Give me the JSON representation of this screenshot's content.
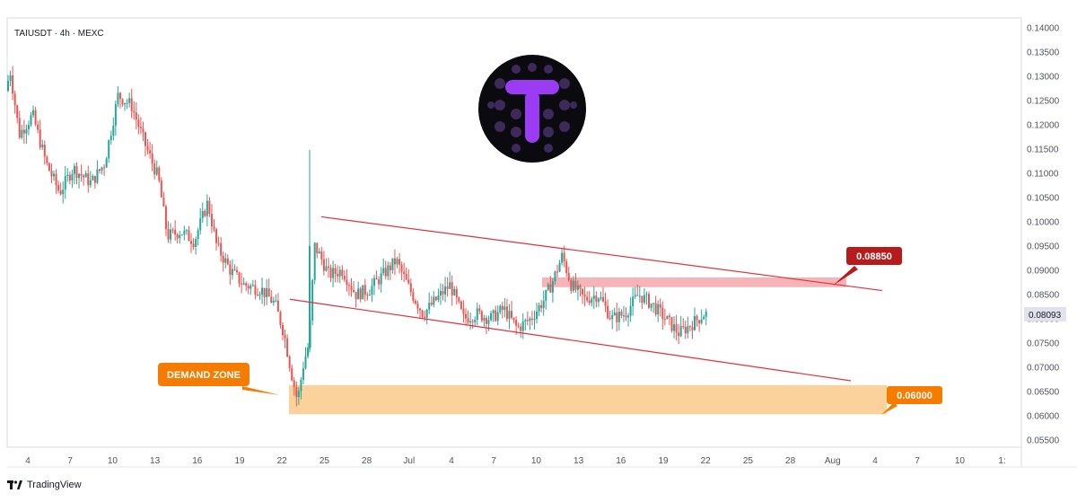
{
  "header": {
    "symbol_line": "TAIUSDT · 4h · MEXC"
  },
  "footer": {
    "brand": "TradingView"
  },
  "colors": {
    "up": "#26a69a",
    "down": "#ef5350",
    "channel": "#e0303e",
    "resistance_fill": "#f7b4b8",
    "demand_fill": "#fcd29c",
    "resistance_label_bg": "#b71c1c",
    "demand_label_bg": "#f57c00",
    "logo_bg": "#0b0b0f",
    "logo_accent": "#9b3cf4"
  },
  "annotations": {
    "demand_zone": "DEMAND ZONE",
    "resistance_level": "0.08850",
    "support_level": "0.06000",
    "current_price": "0.08093"
  },
  "logo_icon": "tai-token-logo-icon",
  "chart_data": {
    "type": "candlestick",
    "x_axis_labels": [
      "4",
      "7",
      "10",
      "13",
      "16",
      "19",
      "22",
      "25",
      "28",
      "Jul",
      "4",
      "7",
      "10",
      "13",
      "16",
      "19",
      "22",
      "25",
      "28",
      "Aug",
      "4",
      "7",
      "10",
      "1:"
    ],
    "y_axis_labels": [
      "0.14000",
      "0.13500",
      "0.13000",
      "0.12500",
      "0.12000",
      "0.11500",
      "0.11000",
      "0.10500",
      "0.10000",
      "0.09500",
      "0.09000",
      "0.08500",
      "0.08000",
      "0.07500",
      "0.07000",
      "0.06500",
      "0.06000",
      "0.05500"
    ],
    "ylim": [
      0.0535,
      0.142
    ],
    "grid": false,
    "series_points": [
      {
        "x": 0,
        "y": 0.127
      },
      {
        "x": 5,
        "y": 0.131
      },
      {
        "x": 15,
        "y": 0.118
      },
      {
        "x": 30,
        "y": 0.122
      },
      {
        "x": 45,
        "y": 0.112
      },
      {
        "x": 60,
        "y": 0.106
      },
      {
        "x": 75,
        "y": 0.111
      },
      {
        "x": 95,
        "y": 0.108
      },
      {
        "x": 110,
        "y": 0.112
      },
      {
        "x": 125,
        "y": 0.126
      },
      {
        "x": 140,
        "y": 0.124
      },
      {
        "x": 155,
        "y": 0.116
      },
      {
        "x": 170,
        "y": 0.109
      },
      {
        "x": 180,
        "y": 0.097
      },
      {
        "x": 195,
        "y": 0.098
      },
      {
        "x": 210,
        "y": 0.096
      },
      {
        "x": 225,
        "y": 0.104
      },
      {
        "x": 235,
        "y": 0.095
      },
      {
        "x": 250,
        "y": 0.09
      },
      {
        "x": 265,
        "y": 0.087
      },
      {
        "x": 285,
        "y": 0.086
      },
      {
        "x": 300,
        "y": 0.083
      },
      {
        "x": 310,
        "y": 0.077
      },
      {
        "x": 318,
        "y": 0.069
      },
      {
        "x": 325,
        "y": 0.063
      },
      {
        "x": 332,
        "y": 0.071
      },
      {
        "x": 338,
        "y": 0.075
      },
      {
        "x": 344,
        "y": 0.095
      },
      {
        "x": 350,
        "y": 0.093
      },
      {
        "x": 360,
        "y": 0.089
      },
      {
        "x": 375,
        "y": 0.09
      },
      {
        "x": 390,
        "y": 0.085
      },
      {
        "x": 405,
        "y": 0.086
      },
      {
        "x": 420,
        "y": 0.089
      },
      {
        "x": 435,
        "y": 0.092
      },
      {
        "x": 450,
        "y": 0.086
      },
      {
        "x": 465,
        "y": 0.081
      },
      {
        "x": 480,
        "y": 0.084
      },
      {
        "x": 495,
        "y": 0.087
      },
      {
        "x": 510,
        "y": 0.08
      },
      {
        "x": 525,
        "y": 0.081
      },
      {
        "x": 540,
        "y": 0.08
      },
      {
        "x": 555,
        "y": 0.082
      },
      {
        "x": 570,
        "y": 0.078
      },
      {
        "x": 585,
        "y": 0.08
      },
      {
        "x": 600,
        "y": 0.084
      },
      {
        "x": 610,
        "y": 0.088
      },
      {
        "x": 620,
        "y": 0.093
      },
      {
        "x": 630,
        "y": 0.087
      },
      {
        "x": 645,
        "y": 0.084
      },
      {
        "x": 660,
        "y": 0.085
      },
      {
        "x": 675,
        "y": 0.08
      },
      {
        "x": 690,
        "y": 0.081
      },
      {
        "x": 705,
        "y": 0.085
      },
      {
        "x": 720,
        "y": 0.083
      },
      {
        "x": 735,
        "y": 0.08
      },
      {
        "x": 750,
        "y": 0.077
      },
      {
        "x": 765,
        "y": 0.079
      },
      {
        "x": 778,
        "y": 0.081
      }
    ],
    "channel_upper": [
      {
        "x": 350,
        "y": 0.101
      },
      {
        "x": 975,
        "y": 0.0858
      }
    ],
    "channel_lower": [
      {
        "x": 315,
        "y": 0.084
      },
      {
        "x": 940,
        "y": 0.0672
      }
    ],
    "resistance_zone": {
      "x0": 596,
      "x1": 935,
      "y0": 0.0865,
      "y1": 0.0885
    },
    "demand_zone": {
      "x0": 314,
      "x1": 980,
      "y0": 0.0603,
      "y1": 0.0663
    }
  }
}
